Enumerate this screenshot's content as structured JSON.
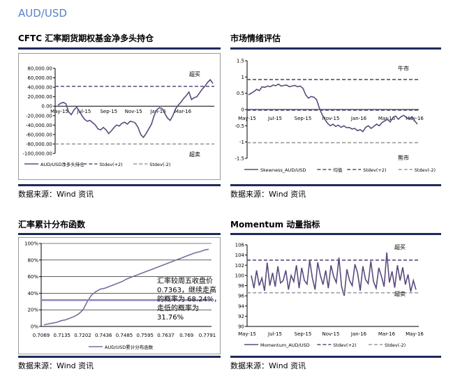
{
  "page": {
    "title": "AUD/USD",
    "source": "数据来源：Wind 资讯"
  },
  "chart_data": [
    {
      "id": "cftc",
      "type": "line",
      "title": "CFTC 汇率期货期权基金净多头持仓",
      "x_ticks": [
        "May-15",
        "Jul-15",
        "Sep-15",
        "Nov-15",
        "Jan-16",
        "Mar-16"
      ],
      "y_ticks": [
        "80,000.00",
        "60,000.00",
        "40,000.00",
        "20,000.00",
        "0.00",
        "-20,000.00",
        "-40,000.00",
        "-60,000.00",
        "-80,000.00",
        "-100,000.00"
      ],
      "ylim": [
        -100000,
        80000
      ],
      "series": [
        {
          "name": "AUD/USD净多头持仓",
          "style": "solid",
          "color": "#5b4a7d",
          "values": [
            2000,
            6000,
            8000,
            5000,
            -12000,
            -18000,
            -8000,
            -2000,
            -10000,
            -20000,
            -28000,
            -32000,
            -30000,
            -35000,
            -40000,
            -48000,
            -50000,
            -45000,
            -50000,
            -58000,
            -52000,
            -45000,
            -40000,
            -42000,
            -36000,
            -34000,
            -38000,
            -32000,
            -33000,
            -36000,
            -45000,
            -60000,
            -66000,
            -58000,
            -48000,
            -38000,
            -20000,
            -8000,
            -3000,
            -5000,
            -15000,
            -25000,
            -30000,
            -20000,
            -6000,
            2000,
            8000,
            16000,
            22000,
            30000,
            14000,
            18000,
            20000,
            28000,
            36000,
            42000,
            50000,
            56000,
            48000
          ]
        },
        {
          "name": "Stdev(+2)",
          "style": "dashed",
          "color": "#5b4a7d",
          "values": [
            42000
          ]
        },
        {
          "name": "Stdev(-2)",
          "style": "dashed",
          "color": "#9a9a9a",
          "values": [
            -80000
          ]
        }
      ],
      "annotations": [
        "超买",
        "超卖"
      ]
    },
    {
      "id": "sentiment",
      "type": "line",
      "title": "市场情绪评估",
      "x_ticks": [
        "May-15",
        "Jul-15",
        "Sep-15",
        "Nov-15",
        "Jan-16",
        "Mar-16",
        "May-16"
      ],
      "y_ticks": [
        "1.5",
        "1",
        "0.5",
        "0",
        "-0.5",
        "-1",
        "-1.5"
      ],
      "ylim": [
        -1.5,
        1.5
      ],
      "series": [
        {
          "name": "Skewness_AUD/USD",
          "style": "solid",
          "color": "#5b4a7d",
          "values": [
            0.45,
            0.5,
            0.55,
            0.62,
            0.58,
            0.7,
            0.68,
            0.72,
            0.7,
            0.75,
            0.73,
            0.78,
            0.72,
            0.74,
            0.75,
            0.7,
            0.72,
            0.74,
            0.7,
            0.72,
            0.65,
            0.45,
            0.35,
            0.4,
            0.38,
            0.3,
            0.05,
            -0.15,
            -0.3,
            -0.42,
            -0.5,
            -0.45,
            -0.52,
            -0.48,
            -0.55,
            -0.5,
            -0.56,
            -0.55,
            -0.6,
            -0.58,
            -0.65,
            -0.62,
            -0.68,
            -0.55,
            -0.5,
            -0.58,
            -0.52,
            -0.45,
            -0.5,
            -0.4,
            -0.35,
            -0.3,
            -0.38,
            -0.25,
            -0.2,
            -0.3,
            -0.22,
            -0.18,
            -0.25,
            -0.3,
            -0.22,
            -0.35,
            -0.45
          ]
        },
        {
          "name": "均值",
          "style": "dashed",
          "color": "#5b4a7d",
          "values": [
            -0.02
          ]
        },
        {
          "name": "Stdev(+2)",
          "style": "dashed",
          "color": "#5b4a7d",
          "values": [
            0.92
          ]
        },
        {
          "name": "Stdev(-2)",
          "style": "dashed",
          "color": "#9a9a9a",
          "values": [
            -1.02
          ]
        }
      ],
      "annotations": [
        "牛市",
        "熊市"
      ]
    },
    {
      "id": "cdf",
      "type": "line",
      "title": "汇率累计分布函数",
      "x_ticks": [
        "0.7069",
        "0.7135",
        "0.7202",
        "0.7436",
        "0.7485",
        "0.7595",
        "0.7637",
        "0.769",
        "0.7791"
      ],
      "y_ticks": [
        "100%",
        "80%",
        "60%",
        "40%",
        "20%",
        "0%"
      ],
      "ylim": [
        0,
        100
      ],
      "series": [
        {
          "name": "AUD/USD累计分布函数",
          "style": "solid",
          "color": "#7a6c9e",
          "values": [
            2,
            3,
            4,
            5,
            7,
            8,
            10,
            12,
            15,
            20,
            30,
            38,
            42,
            45,
            46,
            48,
            50,
            52,
            54,
            57,
            59,
            61,
            63,
            65,
            67,
            69,
            71,
            73,
            75,
            77,
            79,
            81,
            83,
            85,
            87,
            89,
            90,
            92,
            93
          ]
        },
        {
          "name": "",
          "style": "solid",
          "color": "#8e86bd",
          "values": [
            31.76
          ]
        }
      ],
      "annotation": "汇率较周五收盘价0.7363，继续走高的概率为 68.24%，走低的概率为 31.76%"
    },
    {
      "id": "momentum",
      "type": "line",
      "title": "Momentum 动量指标",
      "x_ticks": [
        "May-15",
        "Jul-15",
        "Sep-15",
        "Nov-15",
        "Jan-16",
        "Mar-16",
        "May-16"
      ],
      "y_ticks": [
        "106",
        "104",
        "102",
        "100",
        "98",
        "96",
        "94",
        "92",
        "90"
      ],
      "ylim": [
        90,
        106
      ],
      "series": [
        {
          "name": "Momentum_AUD/USD",
          "style": "solid",
          "color": "#5b4a7d",
          "values": [
            100,
            97.5,
            101,
            98,
            99.5,
            97,
            102.5,
            98,
            100.5,
            97.8,
            101.8,
            98.5,
            99,
            101,
            97.2,
            100,
            98.8,
            102,
            97.5,
            101.5,
            99,
            98.3,
            103,
            99.5,
            97.2,
            102.6,
            100,
            98.2,
            101,
            97.5,
            102,
            99.8,
            98.6,
            103.5,
            97.8,
            96,
            101.2,
            99,
            98,
            102.2,
            100.5,
            97,
            101.8,
            99.2,
            98.4,
            102.8,
            98.8,
            97.5,
            101.5,
            99.8,
            97.8,
            104.5,
            98.6,
            100.8,
            97.6,
            102,
            99,
            101.6,
            98.2,
            100.2,
            96.8,
            99,
            97.2
          ]
        },
        {
          "name": "Stdev(+2)",
          "style": "dashed",
          "color": "#5b4a7d",
          "values": [
            103
          ]
        },
        {
          "name": "Stdev(-2)",
          "style": "dashed",
          "color": "#9a9a9a",
          "values": [
            96.6
          ]
        }
      ],
      "annotations": [
        "超买",
        "超卖"
      ]
    }
  ]
}
